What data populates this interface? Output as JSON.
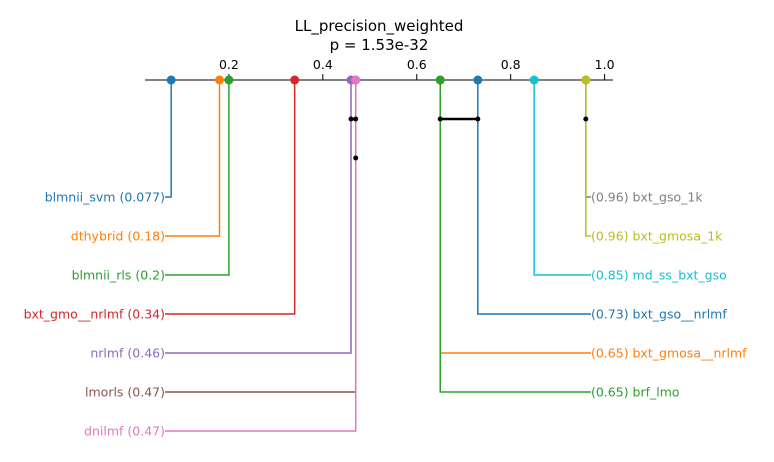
{
  "chart_data": {
    "type": "critical-difference-diagram",
    "title": "LL_precision_weighted",
    "subtitle": "p = 1.53e-32",
    "axis": {
      "range": [
        0.0,
        1.02
      ],
      "ticks": [
        0.2,
        0.4,
        0.6,
        0.8,
        1.0
      ],
      "tick_labels": [
        "0.2",
        "0.4",
        "0.6",
        "0.8",
        "1.0"
      ]
    },
    "methods_left": [
      {
        "name": "blmnii_svm",
        "value": 0.077,
        "label": "blmnii_svm (0.077)",
        "color": "#1f77b4"
      },
      {
        "name": "dthybrid",
        "value": 0.18,
        "label": "dthybrid (0.18)",
        "color": "#ff7f0e"
      },
      {
        "name": "blmnii_rls",
        "value": 0.2,
        "label": "blmnii_rls (0.2)",
        "color": "#2ca02c"
      },
      {
        "name": "bxt_gmo__nrlmf",
        "value": 0.34,
        "label": "bxt_gmo__nrlmf (0.34)",
        "color": "#d62728"
      },
      {
        "name": "nrlmf",
        "value": 0.46,
        "label": "nrlmf (0.46)",
        "color": "#9467bd"
      },
      {
        "name": "lmorls",
        "value": 0.47,
        "label": "lmorls (0.47)",
        "color": "#8c564b"
      },
      {
        "name": "dnilmf",
        "value": 0.47,
        "label": "dnilmf (0.47)",
        "color": "#e377c2"
      }
    ],
    "methods_right": [
      {
        "name": "bxt_gso_1k",
        "value": 0.96,
        "label": "(0.96) bxt_gso_1k",
        "color": "#7f7f7f"
      },
      {
        "name": "bxt_gmosa_1k",
        "value": 0.96,
        "label": "(0.96) bxt_gmosa_1k",
        "color": "#bcbd22"
      },
      {
        "name": "md_ss_bxt_gso",
        "value": 0.85,
        "label": "(0.85) md_ss_bxt_gso",
        "color": "#17becf"
      },
      {
        "name": "bxt_gso__nrlmf",
        "value": 0.73,
        "label": "(0.73) bxt_gso__nrlmf",
        "color": "#1f77b4"
      },
      {
        "name": "bxt_gmosa__nrlmf",
        "value": 0.65,
        "label": "(0.65) bxt_gmosa__nrlmf",
        "color": "#ff7f0e"
      },
      {
        "name": "brf_lmo",
        "value": 0.65,
        "label": "(0.65) brf_lmo",
        "color": "#2ca02c"
      }
    ],
    "cliques": [
      {
        "from": 0.46,
        "to": 0.47,
        "row": 1
      },
      {
        "from": 0.65,
        "to": 0.73,
        "row": 1
      },
      {
        "from": 0.96,
        "to": 0.96,
        "row": 1
      },
      {
        "from": 0.47,
        "to": 0.47,
        "row": 2
      }
    ]
  }
}
